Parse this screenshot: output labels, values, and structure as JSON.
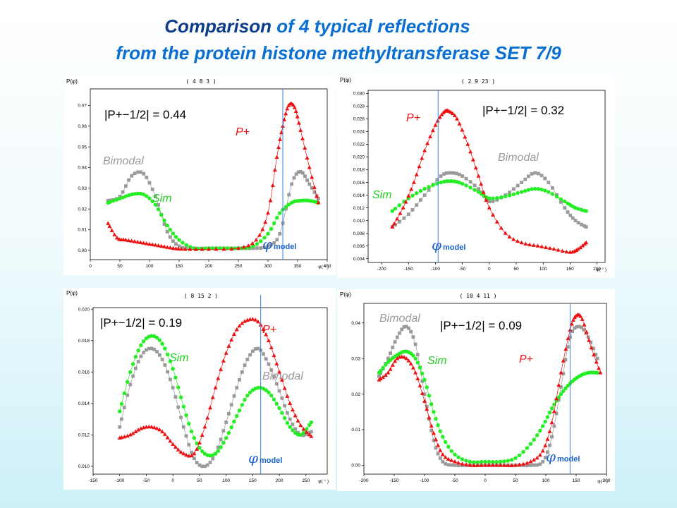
{
  "title": {
    "line1_em": "Comparison",
    "line1_rest": " of 4 typical reflections",
    "line2": "from the protein histone methyltransferase SET 7/9"
  },
  "colors": {
    "bimodal": "#9a9a9a",
    "sim": "#22ee22",
    "p_plus": "#ee1111",
    "phi_model": "#3a80dd",
    "title_dark": "#0d3d8a",
    "title_light": "#0a6fd1"
  },
  "chart_data": [
    {
      "type": "scatter",
      "reflection": "( 4 8 3 )",
      "ylabel": "P(φ)",
      "xlabel": "φ( ° )",
      "xlim": [
        0,
        400
      ],
      "ylim": [
        -0.0045,
        0.078
      ],
      "xticks": [
        "0",
        "50",
        "100",
        "150",
        "200",
        "250",
        "300",
        "350",
        "400"
      ],
      "yticks": [
        "0.00",
        "0.01",
        "0.02",
        "0.03",
        "0.04",
        "0.05",
        "0.06",
        "0.07"
      ],
      "deviation_text": "|P+−1/2| = 0.44",
      "phi_model": 325,
      "labels": {
        "bimodal": "Bimodal",
        "sim": "Sim",
        "p_plus": "P+",
        "phi_model": "φmodel"
      },
      "series": [
        {
          "name": "Bimodal",
          "x": [
            30,
            50,
            70,
            90,
            110,
            130,
            150,
            175,
            200,
            225,
            250,
            275,
            300,
            320,
            340,
            355,
            370,
            385
          ],
          "y": [
            0.024,
            0.026,
            0.036,
            0.037,
            0.026,
            0.009,
            0.002,
            0.001,
            0.001,
            0.001,
            0.001,
            0.001,
            0.002,
            0.008,
            0.032,
            0.038,
            0.032,
            0.025
          ]
        },
        {
          "name": "Sim",
          "x": [
            30,
            50,
            70,
            90,
            110,
            130,
            150,
            175,
            200,
            225,
            250,
            275,
            300,
            320,
            340,
            355,
            370,
            385
          ],
          "y": [
            0.023,
            0.025,
            0.027,
            0.027,
            0.022,
            0.012,
            0.005,
            0.001,
            0.001,
            0.001,
            0.001,
            0.002,
            0.008,
            0.018,
            0.023,
            0.024,
            0.024,
            0.023
          ]
        },
        {
          "name": "P+",
          "x": [
            30,
            45,
            60,
            80,
            100,
            120,
            140,
            160,
            200,
            250,
            280,
            300,
            315,
            325,
            335,
            345,
            355,
            370,
            385
          ],
          "y": [
            0.013,
            0.006,
            0.005,
            0.004,
            0.003,
            0.002,
            0.001,
            0.0005,
            0.0005,
            0.001,
            0.005,
            0.018,
            0.045,
            0.06,
            0.07,
            0.069,
            0.058,
            0.04,
            0.023
          ]
        }
      ]
    },
    {
      "type": "scatter",
      "reflection": "( 2 9 23 )",
      "ylabel": "P(φ)",
      "xlabel": "φ( ° )",
      "xlim": [
        -225,
        215
      ],
      "ylim": [
        0.0034,
        0.0305
      ],
      "xticks": [
        "-200",
        "-150",
        "-100",
        "-50",
        "0",
        "50",
        "100",
        "150",
        "200"
      ],
      "yticks": [
        "0.004",
        "0.006",
        "0.008",
        "0.010",
        "0.012",
        "0.014",
        "0.016",
        "0.018",
        "0.020",
        "0.022",
        "0.024",
        "0.026",
        "0.028",
        "0.030"
      ],
      "deviation_text": "|P+−1/2| = 0.32",
      "phi_model": -95,
      "labels": {
        "bimodal": "Bimodal",
        "sim": "Sim",
        "p_plus": "P+",
        "phi_model": "φmodel"
      },
      "series": [
        {
          "name": "Bimodal",
          "x": [
            -180,
            -150,
            -120,
            -90,
            -70,
            -50,
            -20,
            0,
            30,
            60,
            85,
            110,
            140,
            160,
            180
          ],
          "y": [
            0.009,
            0.011,
            0.014,
            0.017,
            0.0175,
            0.017,
            0.015,
            0.013,
            0.014,
            0.016,
            0.0175,
            0.016,
            0.012,
            0.01,
            0.009
          ]
        },
        {
          "name": "Sim",
          "x": [
            -180,
            -150,
            -120,
            -90,
            -70,
            -50,
            -20,
            0,
            30,
            60,
            85,
            110,
            140,
            160,
            180
          ],
          "y": [
            0.0115,
            0.0135,
            0.015,
            0.016,
            0.0162,
            0.0158,
            0.0145,
            0.0135,
            0.0138,
            0.0145,
            0.015,
            0.0145,
            0.013,
            0.012,
            0.0115
          ]
        },
        {
          "name": "P+",
          "x": [
            -180,
            -160,
            -140,
            -120,
            -100,
            -85,
            -75,
            -60,
            -40,
            -20,
            0,
            30,
            60,
            90,
            120,
            150,
            165,
            180
          ],
          "y": [
            0.009,
            0.012,
            0.016,
            0.021,
            0.025,
            0.027,
            0.0272,
            0.026,
            0.022,
            0.017,
            0.012,
            0.008,
            0.0065,
            0.006,
            0.0055,
            0.005,
            0.0055,
            0.0065
          ]
        }
      ]
    },
    {
      "type": "scatter",
      "reflection": "( 8 15 2 )",
      "ylabel": "P(φ)",
      "xlabel": "φ( ° )",
      "xlim": [
        -150,
        290
      ],
      "ylim": [
        0.0095,
        0.0201
      ],
      "xticks": [
        "-150",
        "-100",
        "-50",
        "0",
        "50",
        "100",
        "150",
        "200",
        "250"
      ],
      "yticks": [
        "0.010",
        "0.012",
        "0.014",
        "0.016",
        "0.018",
        "0.020"
      ],
      "deviation_text": "|P+−1/2| = 0.19",
      "phi_model": 165,
      "labels": {
        "bimodal": "Bimodal",
        "sim": "Sim",
        "p_plus": "P+",
        "phi_model": "φmodel"
      },
      "series": [
        {
          "name": "Bimodal",
          "x": [
            -100,
            -80,
            -60,
            -40,
            -20,
            0,
            20,
            40,
            60,
            80,
            100,
            120,
            140,
            160,
            180,
            200,
            220,
            240,
            260
          ],
          "y": [
            0.0125,
            0.0152,
            0.017,
            0.0175,
            0.0168,
            0.015,
            0.0125,
            0.0105,
            0.01,
            0.0108,
            0.0128,
            0.015,
            0.0168,
            0.0175,
            0.0165,
            0.0148,
            0.013,
            0.012,
            0.0122
          ]
        },
        {
          "name": "Sim",
          "x": [
            -100,
            -80,
            -60,
            -40,
            -20,
            0,
            20,
            40,
            60,
            80,
            100,
            120,
            140,
            160,
            180,
            200,
            220,
            240,
            260
          ],
          "y": [
            0.0135,
            0.016,
            0.0177,
            0.0183,
            0.0178,
            0.0162,
            0.0138,
            0.0118,
            0.0108,
            0.0108,
            0.0118,
            0.0132,
            0.0145,
            0.015,
            0.0147,
            0.0137,
            0.0125,
            0.012,
            0.0128
          ]
        },
        {
          "name": "P+",
          "x": [
            -100,
            -80,
            -60,
            -40,
            -20,
            0,
            20,
            40,
            60,
            80,
            100,
            120,
            140,
            160,
            180,
            200,
            220,
            240,
            260
          ],
          "y": [
            0.0118,
            0.012,
            0.0124,
            0.0125,
            0.0122,
            0.0114,
            0.0108,
            0.0108,
            0.0125,
            0.015,
            0.0172,
            0.0187,
            0.0193,
            0.0192,
            0.018,
            0.016,
            0.014,
            0.0126,
            0.0119
          ]
        }
      ]
    },
    {
      "type": "scatter",
      "reflection": "( 10 4 11 )",
      "ylabel": "P(φ)",
      "xlabel": "φ( ° )",
      "xlim": [
        -200,
        200
      ],
      "ylim": [
        -0.0025,
        0.0455
      ],
      "xticks": [
        "-200",
        "-150",
        "-100",
        "-50",
        "0",
        "50",
        "100",
        "150",
        "200"
      ],
      "yticks": [
        "0.00",
        "0.01",
        "0.02",
        "0.03",
        "0.04"
      ],
      "deviation_text": "|P+−1/2| = 0.09",
      "phi_model": 140,
      "labels": {
        "bimodal": "Bimodal",
        "sim": "Sim",
        "p_plus": "P+",
        "phi_model": "φmodel"
      },
      "series": [
        {
          "name": "Bimodal",
          "x": [
            -175,
            -160,
            -145,
            -130,
            -115,
            -100,
            -85,
            -70,
            -50,
            -25,
            0,
            25,
            50,
            75,
            95,
            110,
            125,
            140,
            155,
            170,
            185
          ],
          "y": [
            0.025,
            0.03,
            0.036,
            0.039,
            0.034,
            0.02,
            0.007,
            0.001,
            0.0,
            0.0,
            0.0,
            0.0,
            0.0,
            0.0,
            0.001,
            0.008,
            0.022,
            0.036,
            0.039,
            0.036,
            0.03
          ]
        },
        {
          "name": "Sim",
          "x": [
            -175,
            -160,
            -145,
            -130,
            -115,
            -100,
            -85,
            -70,
            -50,
            -25,
            0,
            25,
            50,
            75,
            95,
            110,
            125,
            140,
            155,
            170,
            185
          ],
          "y": [
            0.026,
            0.029,
            0.031,
            0.032,
            0.03,
            0.024,
            0.015,
            0.008,
            0.003,
            0.001,
            0.001,
            0.001,
            0.002,
            0.006,
            0.011,
            0.016,
            0.02,
            0.023,
            0.025,
            0.026,
            0.026
          ]
        },
        {
          "name": "P+",
          "x": [
            -175,
            -160,
            -145,
            -130,
            -115,
            -100,
            -85,
            -70,
            -50,
            -25,
            0,
            25,
            50,
            75,
            95,
            110,
            125,
            140,
            150,
            160,
            175,
            190
          ],
          "y": [
            0.024,
            0.026,
            0.03,
            0.03,
            0.026,
            0.018,
            0.009,
            0.003,
            0.001,
            0.0,
            0.0,
            0.0,
            0.0,
            0.001,
            0.004,
            0.012,
            0.026,
            0.038,
            0.042,
            0.041,
            0.033,
            0.026
          ]
        }
      ]
    }
  ]
}
